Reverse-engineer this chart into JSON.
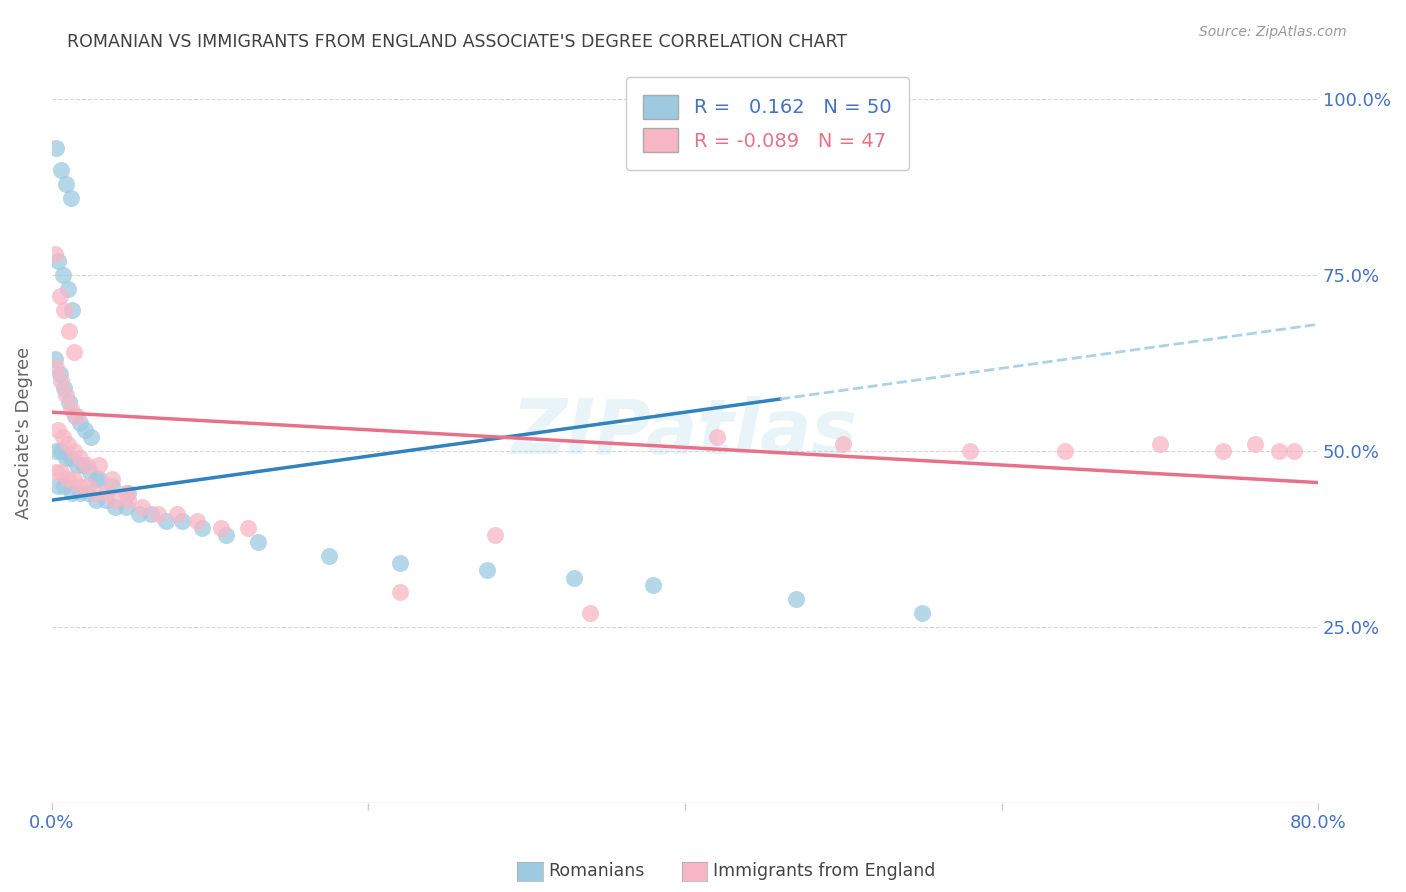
{
  "title": "ROMANIAN VS IMMIGRANTS FROM ENGLAND ASSOCIATE'S DEGREE CORRELATION CHART",
  "source": "Source: ZipAtlas.com",
  "ylabel": "Associate's Degree",
  "watermark": "ZIPatlas",
  "legend_label1": "Romanians",
  "legend_label2": "Immigrants from England",
  "r1": 0.162,
  "n1": 50,
  "r2": -0.089,
  "n2": 47,
  "blue": "#9ecae1",
  "pink": "#f7b6c5",
  "trend_blue": "#3182bd",
  "trend_pink": "#e8718a",
  "trend_blue_dash": "#9ecae1",
  "grid_color": "#cccccc",
  "axis_color": "#4472c4",
  "title_color": "#404040",
  "bg": "#ffffff",
  "xlim": [
    0.0,
    0.8
  ],
  "ylim": [
    0.0,
    1.05
  ],
  "ytick_vals": [
    0.25,
    0.5,
    0.75,
    1.0
  ],
  "ytick_labels": [
    "25.0%",
    "50.0%",
    "75.0%",
    "100.0%"
  ],
  "xtick_left": "0.0%",
  "xtick_right": "80.0%",
  "trend_blue_x0": 0.0,
  "trend_blue_y0": 0.43,
  "trend_blue_x1": 0.8,
  "trend_blue_y1": 0.68,
  "trend_blue_solid_end": 0.46,
  "trend_pink_x0": 0.0,
  "trend_pink_y0": 0.555,
  "trend_pink_x1": 0.8,
  "trend_pink_y1": 0.455,
  "romanian_x": [
    0.003,
    0.006,
    0.009,
    0.012,
    0.004,
    0.007,
    0.01,
    0.013,
    0.002,
    0.005,
    0.008,
    0.011,
    0.015,
    0.018,
    0.021,
    0.025,
    0.003,
    0.006,
    0.009,
    0.012,
    0.016,
    0.02,
    0.024,
    0.028,
    0.004,
    0.008,
    0.013,
    0.018,
    0.023,
    0.028,
    0.034,
    0.04,
    0.047,
    0.055,
    0.063,
    0.072,
    0.082,
    0.095,
    0.11,
    0.13,
    0.03,
    0.038,
    0.048,
    0.175,
    0.22,
    0.275,
    0.33,
    0.38,
    0.47,
    0.55
  ],
  "romanian_y": [
    0.93,
    0.9,
    0.88,
    0.86,
    0.77,
    0.75,
    0.73,
    0.7,
    0.63,
    0.61,
    0.59,
    0.57,
    0.55,
    0.54,
    0.53,
    0.52,
    0.5,
    0.5,
    0.49,
    0.49,
    0.48,
    0.48,
    0.47,
    0.46,
    0.45,
    0.45,
    0.44,
    0.44,
    0.44,
    0.43,
    0.43,
    0.42,
    0.42,
    0.41,
    0.41,
    0.4,
    0.4,
    0.39,
    0.38,
    0.37,
    0.46,
    0.45,
    0.44,
    0.35,
    0.34,
    0.33,
    0.32,
    0.31,
    0.29,
    0.27
  ],
  "england_x": [
    0.002,
    0.005,
    0.008,
    0.011,
    0.014,
    0.003,
    0.006,
    0.009,
    0.012,
    0.016,
    0.004,
    0.007,
    0.01,
    0.014,
    0.018,
    0.022,
    0.003,
    0.006,
    0.01,
    0.014,
    0.018,
    0.023,
    0.028,
    0.034,
    0.04,
    0.048,
    0.057,
    0.067,
    0.079,
    0.092,
    0.107,
    0.124,
    0.03,
    0.038,
    0.047,
    0.22,
    0.28,
    0.34,
    0.42,
    0.5,
    0.58,
    0.64,
    0.7,
    0.74,
    0.76,
    0.775,
    0.785
  ],
  "england_y": [
    0.78,
    0.72,
    0.7,
    0.67,
    0.64,
    0.62,
    0.6,
    0.58,
    0.56,
    0.55,
    0.53,
    0.52,
    0.51,
    0.5,
    0.49,
    0.48,
    0.47,
    0.47,
    0.46,
    0.46,
    0.45,
    0.45,
    0.44,
    0.44,
    0.43,
    0.43,
    0.42,
    0.41,
    0.41,
    0.4,
    0.39,
    0.39,
    0.48,
    0.46,
    0.44,
    0.3,
    0.38,
    0.27,
    0.52,
    0.51,
    0.5,
    0.5,
    0.51,
    0.5,
    0.51,
    0.5,
    0.5
  ]
}
